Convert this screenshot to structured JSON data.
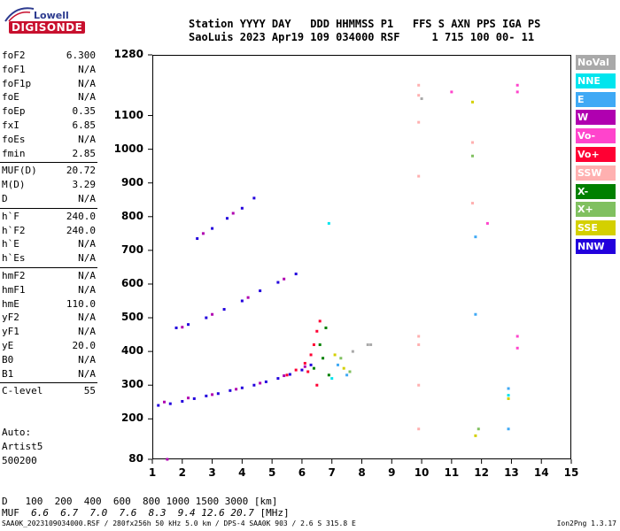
{
  "logo": {
    "company": "Lowell",
    "product": "DIGISONDE"
  },
  "header": {
    "labels": [
      "Station",
      "YYYY",
      "DAY",
      "DDD",
      "HHMMSS",
      "P1",
      "FFS",
      "S",
      "AXN",
      "PPS",
      "IGA",
      "PS"
    ],
    "line1": "Station YYYY DAY   DDD HHMMSS P1   FFS S AXN PPS IGA PS",
    "line2": "SaoLuis 2023 Apr19 109 034000 RSF     1 715 100 00- 11"
  },
  "parameters": [
    {
      "name": "foF2",
      "value": "6.300"
    },
    {
      "name": "foF1",
      "value": "N/A"
    },
    {
      "name": "foF1p",
      "value": "N/A"
    },
    {
      "name": "foE",
      "value": "N/A"
    },
    {
      "name": "foEp",
      "value": "0.35"
    },
    {
      "name": "fxI",
      "value": "6.85"
    },
    {
      "name": "foEs",
      "value": "N/A"
    },
    {
      "name": "fmin",
      "value": "2.85"
    },
    {
      "name": "MUF(D)",
      "value": "20.72"
    },
    {
      "name": "M(D)",
      "value": "3.29"
    },
    {
      "name": "D",
      "value": "N/A"
    },
    {
      "name": "h`F",
      "value": "240.0"
    },
    {
      "name": "h`F2",
      "value": "240.0"
    },
    {
      "name": "h`E",
      "value": "N/A"
    },
    {
      "name": "h`Es",
      "value": "N/A"
    },
    {
      "name": "hmF2",
      "value": "N/A"
    },
    {
      "name": "hmF1",
      "value": "N/A"
    },
    {
      "name": "hmE",
      "value": "110.0"
    },
    {
      "name": "yF2",
      "value": "N/A"
    },
    {
      "name": "yF1",
      "value": "N/A"
    },
    {
      "name": "yE",
      "value": "20.0"
    },
    {
      "name": "B0",
      "value": "N/A"
    },
    {
      "name": "B1",
      "value": "N/A"
    },
    {
      "name": "C-level",
      "value": "55"
    }
  ],
  "auto": {
    "line1": "Auto:",
    "line2": "Artist5",
    "line3": "500200"
  },
  "legend": [
    {
      "label": "NoVal",
      "color": "#a9a9a9"
    },
    {
      "label": "NNE",
      "color": "#00e5ee"
    },
    {
      "label": "E",
      "color": "#3fa9f5"
    },
    {
      "label": "W",
      "color": "#b000b0"
    },
    {
      "label": "Vo-",
      "color": "#ff44cc"
    },
    {
      "label": "Vo+",
      "color": "#ff0033"
    },
    {
      "label": "SSW",
      "color": "#ffb0b0"
    },
    {
      "label": "X-",
      "color": "#008000"
    },
    {
      "label": "X+",
      "color": "#80c060"
    },
    {
      "label": "SSE",
      "color": "#d4d000"
    },
    {
      "label": "NNW",
      "color": "#2200dd"
    }
  ],
  "mufTable": {
    "dLabel": "D",
    "mufLabel": "MUF",
    "distances": [
      "100",
      "200",
      "400",
      "600",
      "800",
      "1000",
      "1500",
      "3000"
    ],
    "distUnit": "[km]",
    "mufs": [
      "6.6",
      "6.7",
      "7.0",
      "7.6",
      "8.3",
      "9.4",
      "12.6",
      "20.7"
    ],
    "mufUnit": "[MHz]"
  },
  "footer": {
    "left": "SAA0K_2023109034000.RSF / 280fx256h 50 kHz 5.0 km / DPS-4 SAA0K 903 / 2.6 S 315.8 E",
    "right": "Ion2Png 1.3.17"
  },
  "chart_data": {
    "type": "scatter",
    "title": "",
    "xlabel": "",
    "ylabel": "",
    "xlim": [
      1,
      15
    ],
    "ylim": [
      80,
      1280
    ],
    "xticks": [
      1,
      2,
      3,
      4,
      5,
      6,
      7,
      8,
      9,
      10,
      11,
      12,
      13,
      14,
      15
    ],
    "yticks": [
      80,
      200,
      300,
      400,
      500,
      600,
      700,
      800,
      900,
      1000,
      1100,
      1280
    ],
    "series": [
      {
        "color": "#2200dd",
        "points": [
          [
            1.2,
            240
          ],
          [
            1.6,
            245
          ],
          [
            2.0,
            252
          ],
          [
            2.4,
            260
          ],
          [
            2.8,
            268
          ],
          [
            3.2,
            275
          ],
          [
            3.6,
            284
          ],
          [
            4.0,
            292
          ],
          [
            4.4,
            300
          ],
          [
            4.8,
            310
          ],
          [
            5.2,
            320
          ],
          [
            5.6,
            332
          ],
          [
            6.0,
            345
          ],
          [
            6.3,
            360
          ],
          [
            1.8,
            470
          ],
          [
            2.2,
            480
          ],
          [
            2.8,
            500
          ],
          [
            3.4,
            525
          ],
          [
            4.0,
            550
          ],
          [
            4.6,
            580
          ],
          [
            5.2,
            605
          ],
          [
            5.8,
            630
          ],
          [
            2.5,
            735
          ],
          [
            3.0,
            765
          ],
          [
            3.5,
            795
          ],
          [
            4.0,
            825
          ],
          [
            4.4,
            855
          ]
        ]
      },
      {
        "color": "#b000b0",
        "points": [
          [
            1.4,
            250
          ],
          [
            2.2,
            262
          ],
          [
            3.0,
            272
          ],
          [
            3.8,
            288
          ],
          [
            4.6,
            306
          ],
          [
            5.4,
            328
          ],
          [
            6.1,
            355
          ],
          [
            2.0,
            472
          ],
          [
            3.0,
            510
          ],
          [
            4.2,
            560
          ],
          [
            5.4,
            615
          ],
          [
            2.7,
            750
          ],
          [
            3.7,
            810
          ],
          [
            1.5,
            80
          ]
        ]
      },
      {
        "color": "#ff0033",
        "points": [
          [
            5.5,
            330
          ],
          [
            5.8,
            345
          ],
          [
            6.1,
            365
          ],
          [
            6.3,
            390
          ],
          [
            6.4,
            420
          ],
          [
            6.5,
            460
          ],
          [
            6.6,
            490
          ],
          [
            6.2,
            340
          ],
          [
            6.5,
            300
          ]
        ]
      },
      {
        "color": "#008000",
        "points": [
          [
            6.4,
            350
          ],
          [
            6.6,
            420
          ],
          [
            6.8,
            470
          ],
          [
            6.7,
            380
          ],
          [
            6.9,
            330
          ]
        ]
      },
      {
        "color": "#ff44cc",
        "points": [
          [
            13.2,
            1190
          ],
          [
            13.2,
            1170
          ],
          [
            13.2,
            445
          ],
          [
            13.2,
            410
          ],
          [
            11.0,
            1170
          ],
          [
            12.2,
            780
          ]
        ]
      },
      {
        "color": "#ffb0b0",
        "points": [
          [
            9.9,
            1190
          ],
          [
            9.9,
            1160
          ],
          [
            9.9,
            1080
          ],
          [
            9.9,
            920
          ],
          [
            9.9,
            445
          ],
          [
            9.9,
            420
          ],
          [
            9.9,
            300
          ],
          [
            9.9,
            170
          ],
          [
            11.7,
            1020
          ],
          [
            11.7,
            840
          ]
        ]
      },
      {
        "color": "#3fa9f5",
        "points": [
          [
            7.2,
            360
          ],
          [
            7.5,
            330
          ],
          [
            11.8,
            740
          ],
          [
            11.8,
            510
          ],
          [
            12.9,
            290
          ],
          [
            12.9,
            170
          ]
        ]
      },
      {
        "color": "#d4d000",
        "points": [
          [
            7.1,
            390
          ],
          [
            7.4,
            350
          ],
          [
            11.8,
            150
          ],
          [
            12.9,
            260
          ],
          [
            11.7,
            1140
          ]
        ]
      },
      {
        "color": "#80c060",
        "points": [
          [
            7.3,
            380
          ],
          [
            7.6,
            340
          ],
          [
            11.7,
            980
          ],
          [
            11.9,
            170
          ]
        ]
      },
      {
        "color": "#00e5ee",
        "points": [
          [
            6.9,
            780
          ],
          [
            7.0,
            320
          ],
          [
            12.9,
            270
          ]
        ]
      },
      {
        "color": "#a9a9a9",
        "points": [
          [
            7.7,
            400
          ],
          [
            8.2,
            420
          ],
          [
            8.3,
            420
          ],
          [
            10.0,
            1150
          ]
        ]
      }
    ]
  }
}
